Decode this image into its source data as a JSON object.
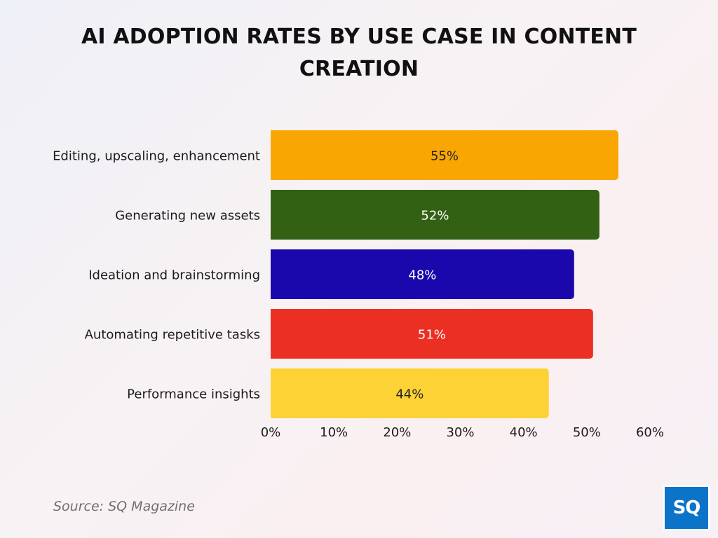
{
  "chart_data": {
    "type": "bar",
    "orientation": "horizontal",
    "title": "AI ADOPTION RATES BY USE CASE IN CONTENT CREATION",
    "categories": [
      "Editing, upscaling, enhancement",
      "Generating new assets",
      "Ideation and brainstorming",
      "Automating repetitive tasks",
      "Performance insights"
    ],
    "values": [
      55,
      52,
      48,
      51,
      44
    ],
    "value_labels": [
      "55%",
      "52%",
      "48%",
      "51%",
      "44%"
    ],
    "colors": [
      "#f9a602",
      "#336114",
      "#1b08ad",
      "#eb2f23",
      "#fdd234"
    ],
    "label_colors": [
      "#222222",
      "#ffffff",
      "#ffffff",
      "#ffffff",
      "#222222"
    ],
    "xlim": [
      0,
      60
    ],
    "xticks": [
      0,
      10,
      20,
      30,
      40,
      50,
      60
    ],
    "xtick_labels": [
      "0%",
      "10%",
      "20%",
      "30%",
      "40%",
      "50%",
      "60%"
    ],
    "grid": false,
    "legend": "none"
  },
  "source": "Source: SQ Magazine",
  "logo_text": "SQ"
}
